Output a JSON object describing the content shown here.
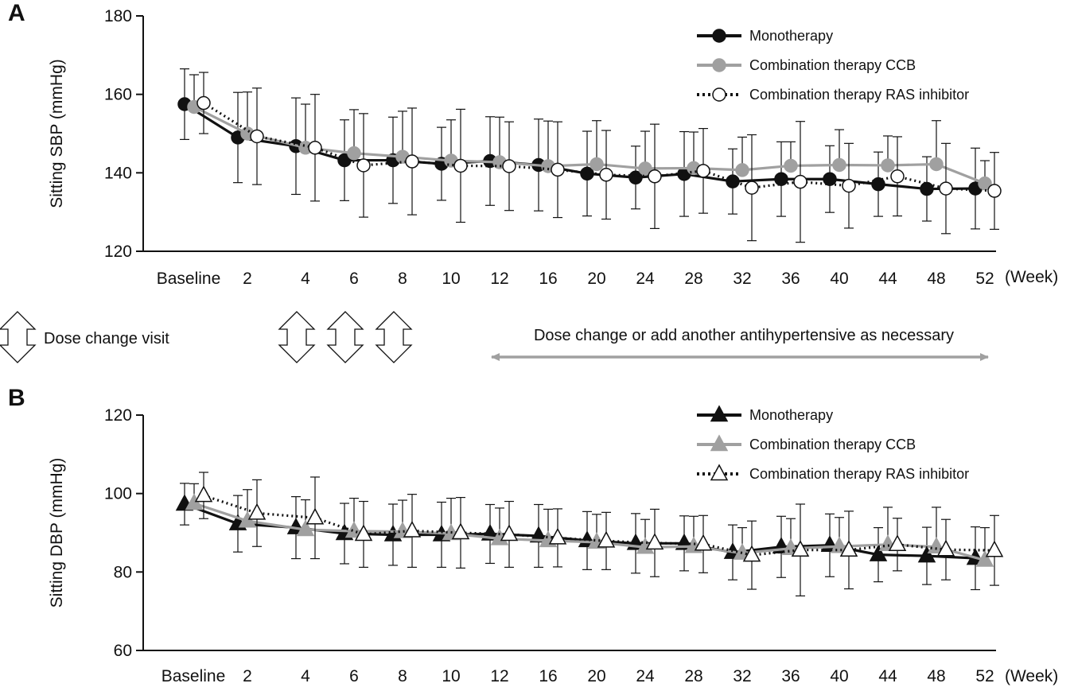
{
  "panel_a_label": "A",
  "panel_b_label": "B",
  "week_unit": "(Week)",
  "dose_change_visit": "Dose change visit",
  "dose_change_note": "Dose change or add another antihypertensive as necessary",
  "colors": {
    "monotherapy": "#111111",
    "ccb": "#a0a0a0",
    "ras": "#111111",
    "ras_marker_fill": "#ffffff",
    "note_arrow": "#a0a0a0"
  },
  "chart_data": [
    {
      "type": "line",
      "panel": "A",
      "ylabel": "Sitting SBP (mmHg)",
      "xlabel": "",
      "ylim": [
        120,
        180
      ],
      "yticks": [
        120,
        140,
        160,
        180
      ],
      "categories": [
        "Baseline",
        "2",
        "4",
        "6",
        "8",
        "10",
        "12",
        "16",
        "20",
        "24",
        "28",
        "32",
        "36",
        "40",
        "44",
        "48",
        "52"
      ],
      "legend_position": "top-right",
      "series": [
        {
          "name": "Monotherapy",
          "marker": "circle",
          "style": "solid-black",
          "values": [
            157.5,
            149,
            146.8,
            143.2,
            143.2,
            142.3,
            143,
            142,
            139.8,
            138.8,
            139.7,
            137.8,
            138.4,
            138.4,
            137.1,
            135.9,
            136
          ],
          "errors": [
            9,
            11.5,
            12.3,
            10.3,
            11,
            9.3,
            11.3,
            11.7,
            10.8,
            8,
            10.8,
            8.3,
            9.5,
            8.5,
            8.2,
            8.2,
            10.3
          ]
        },
        {
          "name": "Combination therapy CCB",
          "marker": "circle",
          "style": "solid-gray",
          "values": [
            156.8,
            150,
            146.4,
            145,
            144.1,
            143.1,
            142.7,
            141.7,
            142.2,
            141.1,
            141.2,
            140.7,
            141.8,
            142,
            141.9,
            142.2,
            137.3
          ],
          "errors": [
            8.2,
            10.6,
            11.1,
            11.1,
            11.6,
            10.4,
            11.5,
            11.5,
            11.1,
            9.5,
            9.2,
            8.4,
            6.1,
            9,
            7.5,
            11.1,
            5.8
          ],
          "show_errors_on": "upper"
        },
        {
          "name": "Combination therapy RAS inhibitor",
          "marker": "open-circle",
          "style": "dotted-black",
          "values": [
            157.8,
            149.3,
            146.4,
            141.9,
            142.9,
            141.8,
            141.7,
            140.8,
            139.5,
            139.1,
            140.5,
            136.2,
            137.7,
            136.7,
            139.1,
            136,
            135.4
          ],
          "errors": [
            7.8,
            12.3,
            13.6,
            13.2,
            13.6,
            14.4,
            11.3,
            12.2,
            11.3,
            13.3,
            10.8,
            13.5,
            15.4,
            10.8,
            10.1,
            11.5,
            9.8
          ]
        }
      ]
    },
    {
      "type": "line",
      "panel": "B",
      "ylabel": "Sitting DBP (mmHg)",
      "xlabel": "",
      "ylim": [
        60,
        120
      ],
      "yticks": [
        60,
        80,
        100,
        120
      ],
      "categories": [
        "Baseline",
        "2",
        "4",
        "6",
        "8",
        "10",
        "12",
        "16",
        "20",
        "24",
        "28",
        "32",
        "36",
        "40",
        "44",
        "48",
        "52"
      ],
      "legend_position": "top-right",
      "series": [
        {
          "name": "Monotherapy",
          "marker": "triangle",
          "style": "solid-black",
          "values": [
            97.3,
            92.3,
            91.3,
            89.8,
            89.5,
            89.5,
            89.7,
            89.2,
            88,
            87.3,
            87.3,
            85,
            86.4,
            86.8,
            84.4,
            84.1,
            83.5
          ],
          "errors": [
            5.3,
            7.2,
            7.9,
            7.7,
            7.8,
            8.3,
            7.5,
            8,
            7.4,
            7.6,
            7,
            7,
            7.8,
            8,
            6.9,
            7.3,
            8
          ]
        },
        {
          "name": "Combination therapy CCB",
          "marker": "triangle",
          "style": "solid-gray",
          "values": [
            97.5,
            93,
            90.8,
            90.4,
            90.3,
            89.8,
            88.5,
            88,
            87.6,
            86.3,
            86.5,
            84.8,
            86,
            86.5,
            87,
            86.4,
            83
          ],
          "errors": [
            5,
            8,
            7.6,
            8.4,
            8,
            9,
            7.8,
            8,
            7.1,
            7.1,
            7.7,
            6.5,
            7.6,
            7.4,
            9.5,
            10.1,
            8.3
          ],
          "show_errors_on": "upper"
        },
        {
          "name": "Combination therapy RAS inhibitor",
          "marker": "open-triangle",
          "style": "dotted-black",
          "values": [
            99.5,
            95,
            93.8,
            89.6,
            90.5,
            90,
            89.6,
            88.7,
            87.9,
            87.4,
            87.1,
            84.3,
            85.6,
            85.6,
            87,
            85.7,
            85.5
          ],
          "errors": [
            5.9,
            8.5,
            10.4,
            8.4,
            9.3,
            9,
            8.4,
            7.4,
            7.3,
            8.6,
            7.3,
            8.7,
            11.7,
            9.9,
            6.7,
            7.7,
            8.9
          ]
        }
      ]
    }
  ]
}
